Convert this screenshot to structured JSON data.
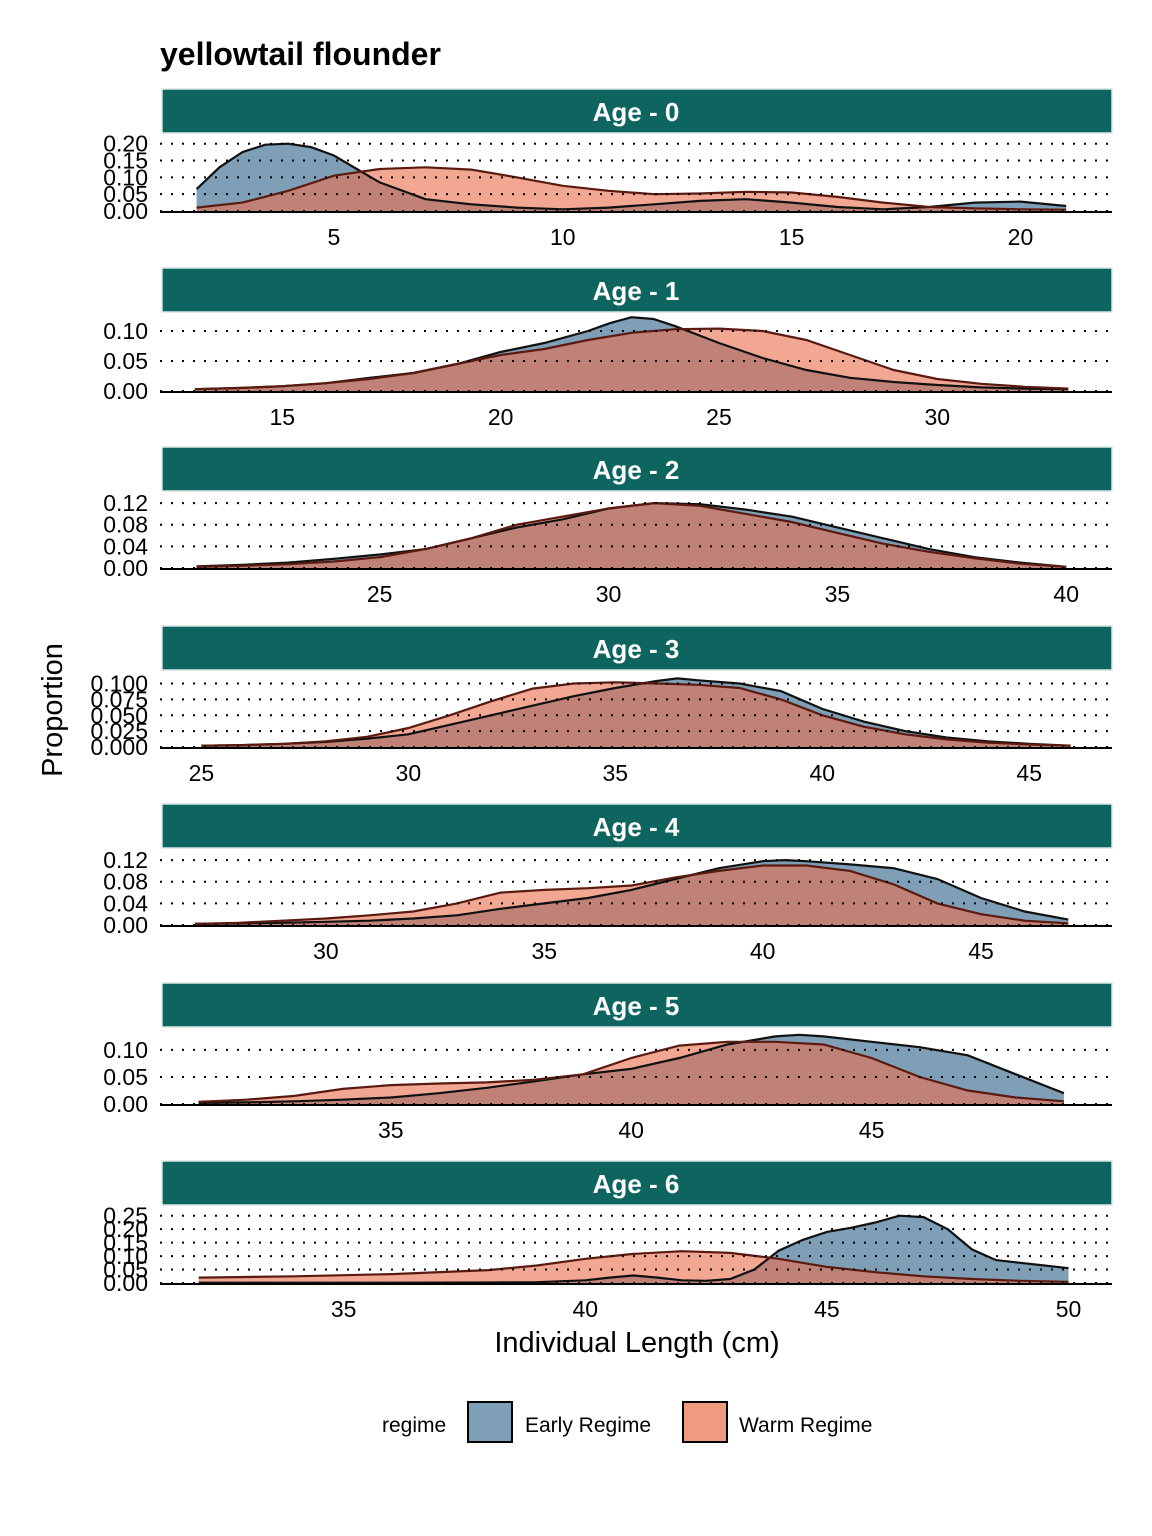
{
  "chart_data": {
    "type": "area",
    "title": "yellowtail flounder",
    "xlabel": "Individual Length (cm)",
    "ylabel": "Proportion",
    "legend": {
      "title": "regime",
      "position": "bottom",
      "entries": [
        {
          "name": "Early Regime",
          "color": "#7f9fb7"
        },
        {
          "name": "Warm Regime",
          "color": "#ee9b80"
        }
      ]
    },
    "colors": {
      "early_fill": "#7f9fb7",
      "warm_fill": "#ee9b80",
      "overlap_fill": "#a96c63",
      "strip": "#0e6560",
      "strip_text": "#ffffff"
    },
    "grid": "horizontal dotted",
    "panels": [
      {
        "label": "Age - 0",
        "xlim": [
          1.2,
          22
        ],
        "ylim": [
          0,
          0.22
        ],
        "xticks": [
          5,
          10,
          15,
          20
        ],
        "xtick_labels": [
          "5",
          "10",
          "15",
          "20"
        ],
        "yticks": [
          0,
          0.05,
          0.1,
          0.15,
          0.2
        ],
        "ytick_labels": [
          "0.00",
          "0.05",
          "0.10",
          "0.15",
          "0.20"
        ],
        "series": [
          {
            "name": "Early Regime",
            "x": [
              2,
              2.5,
              3,
              3.5,
              4,
              4.5,
              5,
              5.5,
              6,
              7,
              8,
              9,
              10,
              11,
              12,
              13,
              14,
              15,
              16,
              17,
              18,
              19,
              20,
              21
            ],
            "y": [
              0.065,
              0.13,
              0.175,
              0.197,
              0.2,
              0.19,
              0.165,
              0.125,
              0.085,
              0.035,
              0.02,
              0.01,
              0.005,
              0.01,
              0.02,
              0.03,
              0.035,
              0.025,
              0.012,
              0.005,
              0.012,
              0.025,
              0.028,
              0.015
            ]
          },
          {
            "name": "Warm Regime",
            "x": [
              2,
              3,
              4,
              5,
              6,
              7,
              8,
              9,
              10,
              11,
              12,
              13,
              14,
              15,
              16,
              17,
              18,
              19,
              20,
              21
            ],
            "y": [
              0.01,
              0.025,
              0.06,
              0.105,
              0.125,
              0.13,
              0.123,
              0.1,
              0.075,
              0.06,
              0.05,
              0.052,
              0.057,
              0.055,
              0.042,
              0.025,
              0.012,
              0.008,
              0.005,
              0.004
            ]
          }
        ]
      },
      {
        "label": "Age - 1",
        "xlim": [
          12.2,
          34
        ],
        "ylim": [
          0,
          0.125
        ],
        "xticks": [
          15,
          20,
          25,
          30
        ],
        "xtick_labels": [
          "15",
          "20",
          "25",
          "30"
        ],
        "yticks": [
          0,
          0.05,
          0.1
        ],
        "ytick_labels": [
          "0.00",
          "0.05",
          "0.10"
        ],
        "series": [
          {
            "name": "Early Regime",
            "x": [
              13,
              14,
              15,
              16,
              17,
              18,
              19,
              20,
              21,
              22,
              22.5,
              23,
              23.5,
              24,
              25,
              26,
              27,
              28,
              29,
              30,
              31,
              32,
              33
            ],
            "y": [
              0.003,
              0.005,
              0.008,
              0.013,
              0.022,
              0.03,
              0.045,
              0.065,
              0.08,
              0.1,
              0.113,
              0.123,
              0.12,
              0.108,
              0.08,
              0.055,
              0.035,
              0.022,
              0.015,
              0.01,
              0.006,
              0.004,
              0.003
            ]
          },
          {
            "name": "Warm Regime",
            "x": [
              13,
              14,
              15,
              16,
              17,
              18,
              19,
              20,
              21,
              22,
              23,
              24,
              25,
              26,
              27,
              28,
              29,
              30,
              31,
              32,
              33
            ],
            "y": [
              0.003,
              0.005,
              0.008,
              0.013,
              0.02,
              0.03,
              0.045,
              0.06,
              0.07,
              0.085,
              0.097,
              0.103,
              0.104,
              0.1,
              0.085,
              0.06,
              0.035,
              0.02,
              0.012,
              0.007,
              0.004
            ]
          }
        ]
      },
      {
        "label": "Age - 2",
        "xlim": [
          20.2,
          41
        ],
        "ylim": [
          0,
          0.135
        ],
        "xticks": [
          25,
          30,
          35,
          40
        ],
        "xtick_labels": [
          "25",
          "30",
          "35",
          "40"
        ],
        "yticks": [
          0,
          0.04,
          0.08,
          0.12
        ],
        "ytick_labels": [
          "0.00",
          "0.04",
          "0.08",
          "0.12"
        ],
        "series": [
          {
            "name": "Early Regime",
            "x": [
              21,
              22,
              23,
              24,
              25,
              26,
              27,
              28,
              29,
              30,
              31,
              32,
              33,
              34,
              35,
              36,
              37,
              38,
              39,
              40
            ],
            "y": [
              0.003,
              0.006,
              0.01,
              0.017,
              0.025,
              0.035,
              0.055,
              0.075,
              0.09,
              0.11,
              0.12,
              0.118,
              0.108,
              0.095,
              0.075,
              0.055,
              0.035,
              0.02,
              0.01,
              0.002
            ]
          },
          {
            "name": "Warm Regime",
            "x": [
              21,
              22,
              23,
              24,
              25,
              26,
              27,
              28,
              29,
              30,
              31,
              32,
              33,
              34,
              35,
              36,
              37,
              38,
              39,
              40
            ],
            "y": [
              0.002,
              0.004,
              0.007,
              0.012,
              0.02,
              0.035,
              0.055,
              0.08,
              0.095,
              0.11,
              0.12,
              0.115,
              0.1,
              0.085,
              0.065,
              0.045,
              0.03,
              0.018,
              0.008,
              0.002
            ]
          }
        ]
      },
      {
        "label": "Age - 3",
        "xlim": [
          24,
          47
        ],
        "ylim": [
          0,
          0.115
        ],
        "xticks": [
          25,
          30,
          35,
          40,
          45
        ],
        "xtick_labels": [
          "25",
          "30",
          "35",
          "40",
          "45"
        ],
        "yticks": [
          0,
          0.025,
          0.05,
          0.075,
          0.1
        ],
        "ytick_labels": [
          "0.000",
          "0.025",
          "0.050",
          "0.075",
          "0.100"
        ],
        "series": [
          {
            "name": "Early Regime",
            "x": [
              25,
              26,
              27,
              28,
              29,
              30,
              31,
              32,
              33,
              34,
              35,
              36,
              36.5,
              37,
              38,
              39,
              40,
              41,
              42,
              43,
              44,
              45,
              46
            ],
            "y": [
              0.002,
              0.003,
              0.005,
              0.008,
              0.013,
              0.02,
              0.035,
              0.05,
              0.065,
              0.08,
              0.093,
              0.104,
              0.108,
              0.105,
              0.1,
              0.088,
              0.06,
              0.04,
              0.025,
              0.015,
              0.009,
              0.005,
              0.002
            ]
          },
          {
            "name": "Warm Regime",
            "x": [
              25,
              26,
              27,
              28,
              29,
              30,
              31,
              32,
              33,
              34,
              35,
              36,
              37,
              38,
              39,
              40,
              41,
              42,
              43,
              44,
              45,
              46
            ],
            "y": [
              0.002,
              0.003,
              0.005,
              0.009,
              0.016,
              0.03,
              0.05,
              0.072,
              0.092,
              0.1,
              0.102,
              0.1,
              0.098,
              0.093,
              0.075,
              0.05,
              0.032,
              0.02,
              0.012,
              0.007,
              0.004,
              0.002
            ]
          }
        ]
      },
      {
        "label": "Age - 4",
        "xlim": [
          26.2,
          48
        ],
        "ylim": [
          0,
          0.135
        ],
        "xticks": [
          30,
          35,
          40,
          45
        ],
        "xtick_labels": [
          "30",
          "35",
          "40",
          "45"
        ],
        "yticks": [
          0,
          0.04,
          0.08,
          0.12
        ],
        "ytick_labels": [
          "0.00",
          "0.04",
          "0.08",
          "0.12"
        ],
        "series": [
          {
            "name": "Early Regime",
            "x": [
              27,
              28,
              29,
              30,
              31,
              32,
              33,
              34,
              35,
              36,
              37,
              38,
              39,
              40,
              40.5,
              41,
              42,
              43,
              44,
              45,
              46,
              47
            ],
            "y": [
              0.002,
              0.003,
              0.004,
              0.006,
              0.008,
              0.012,
              0.018,
              0.03,
              0.04,
              0.05,
              0.065,
              0.085,
              0.105,
              0.118,
              0.12,
              0.118,
              0.112,
              0.105,
              0.085,
              0.05,
              0.025,
              0.01
            ]
          },
          {
            "name": "Warm Regime",
            "x": [
              27,
              28,
              29,
              30,
              31,
              32,
              33,
              34,
              35,
              36,
              37,
              38,
              39,
              40,
              41,
              42,
              43,
              44,
              45,
              46,
              47
            ],
            "y": [
              0.002,
              0.004,
              0.008,
              0.012,
              0.018,
              0.025,
              0.04,
              0.06,
              0.065,
              0.068,
              0.073,
              0.088,
              0.1,
              0.11,
              0.11,
              0.1,
              0.075,
              0.04,
              0.02,
              0.008,
              0.003
            ]
          }
        ]
      },
      {
        "label": "Age - 5",
        "xlim": [
          30.2,
          50
        ],
        "ylim": [
          0,
          0.135
        ],
        "xticks": [
          35,
          40,
          45
        ],
        "xtick_labels": [
          "35",
          "40",
          "45"
        ],
        "yticks": [
          0,
          0.05,
          0.1
        ],
        "ytick_labels": [
          "0.00",
          "0.05",
          "0.10"
        ],
        "series": [
          {
            "name": "Early Regime",
            "x": [
              31,
              32,
              33,
              34,
              35,
              36,
              37,
              38,
              39,
              40,
              41,
              42,
              43,
              43.5,
              44,
              45,
              46,
              47,
              48,
              49
            ],
            "y": [
              0.002,
              0.003,
              0.005,
              0.008,
              0.012,
              0.02,
              0.03,
              0.042,
              0.055,
              0.065,
              0.085,
              0.11,
              0.125,
              0.128,
              0.125,
              0.115,
              0.105,
              0.09,
              0.055,
              0.02
            ]
          },
          {
            "name": "Warm Regime",
            "x": [
              31,
              32,
              33,
              34,
              35,
              36,
              37,
              38,
              39,
              40,
              41,
              42,
              43,
              44,
              45,
              46,
              47,
              48,
              49
            ],
            "y": [
              0.004,
              0.008,
              0.015,
              0.028,
              0.035,
              0.038,
              0.04,
              0.045,
              0.055,
              0.085,
              0.108,
              0.115,
              0.115,
              0.11,
              0.085,
              0.05,
              0.025,
              0.012,
              0.005
            ]
          }
        ]
      },
      {
        "label": "Age - 6",
        "xlim": [
          31.2,
          50.9
        ],
        "ylim": [
          0,
          0.275
        ],
        "xticks": [
          35,
          40,
          45,
          50
        ],
        "xtick_labels": [
          "35",
          "40",
          "45",
          "50"
        ],
        "yticks": [
          0,
          0.05,
          0.1,
          0.15,
          0.2,
          0.25
        ],
        "ytick_labels": [
          "0.00",
          "0.05",
          "0.10",
          "0.15",
          "0.20",
          "0.25"
        ],
        "series": [
          {
            "name": "Early Regime",
            "x": [
              32,
              34,
              36,
              38,
              39,
              40,
              40.5,
              41,
              41.5,
              42,
              42.5,
              43,
              43.5,
              44,
              44.5,
              45,
              45.5,
              46,
              46.5,
              47,
              47.5,
              48,
              48.5,
              49,
              49.5,
              50
            ],
            "y": [
              0.001,
              0.001,
              0.001,
              0.002,
              0.003,
              0.01,
              0.02,
              0.028,
              0.02,
              0.01,
              0.008,
              0.015,
              0.05,
              0.12,
              0.16,
              0.19,
              0.205,
              0.225,
              0.25,
              0.245,
              0.2,
              0.125,
              0.085,
              0.075,
              0.065,
              0.055
            ]
          },
          {
            "name": "Warm Regime",
            "x": [
              32,
              34,
              36,
              38,
              39,
              40,
              41,
              42,
              43,
              44,
              45,
              46,
              47,
              48,
              49,
              50
            ],
            "y": [
              0.02,
              0.025,
              0.033,
              0.048,
              0.065,
              0.09,
              0.108,
              0.118,
              0.112,
              0.09,
              0.06,
              0.04,
              0.025,
              0.015,
              0.008,
              0.004
            ]
          }
        ]
      }
    ]
  }
}
